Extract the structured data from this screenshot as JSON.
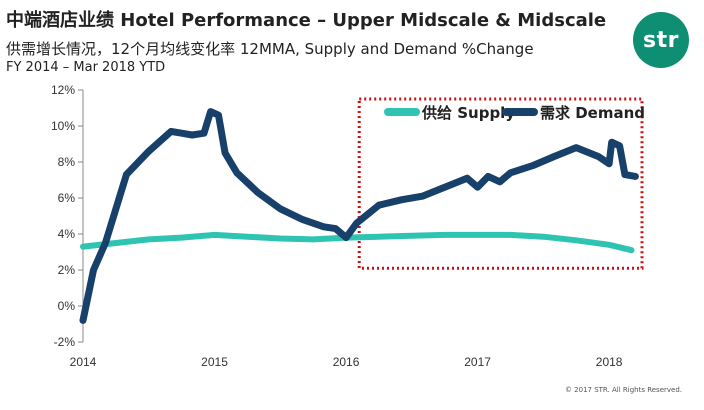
{
  "header": {
    "title": "中端酒店业绩 Hotel Performance – Upper Midscale & Midscale",
    "subtitle": "供需增长情况，12个月均线变化率 12MMA, Supply and Demand %Change",
    "period": "FY 2014 –  Mar 2018 YTD"
  },
  "logo": {
    "text": "str",
    "color": "#0e8f73"
  },
  "footer": {
    "copyright": "© 2017 STR. All Rights Reserved."
  },
  "chart_data": {
    "type": "line",
    "xlabel": "",
    "ylabel": "",
    "ylim": [
      -2,
      12
    ],
    "xlim": [
      2014,
      2018.25
    ],
    "y_ticks": [
      "-2%",
      "0%",
      "2%",
      "4%",
      "6%",
      "8%",
      "10%",
      "12%"
    ],
    "y_tick_values": [
      -2,
      0,
      2,
      4,
      6,
      8,
      10,
      12
    ],
    "x_ticks": [
      "2014",
      "2015",
      "2016",
      "2017",
      "2018"
    ],
    "x_tick_values": [
      2014,
      2015,
      2016,
      2017,
      2018
    ],
    "grid": false,
    "legend_position": "top-right",
    "highlight_box": {
      "x_range": [
        2016.1,
        2018.25
      ],
      "y_range": [
        2.1,
        11.5
      ],
      "color": "#cc1111",
      "style": "dotted"
    },
    "series": [
      {
        "name": "供给 Supply",
        "color": "#2ec4b1",
        "points": [
          [
            2014.0,
            3.3
          ],
          [
            2014.25,
            3.5
          ],
          [
            2014.5,
            3.7
          ],
          [
            2014.75,
            3.8
          ],
          [
            2015.0,
            3.95
          ],
          [
            2015.25,
            3.85
          ],
          [
            2015.5,
            3.75
          ],
          [
            2015.75,
            3.7
          ],
          [
            2016.0,
            3.8
          ],
          [
            2016.25,
            3.85
          ],
          [
            2016.5,
            3.9
          ],
          [
            2016.75,
            3.95
          ],
          [
            2017.0,
            3.95
          ],
          [
            2017.25,
            3.95
          ],
          [
            2017.5,
            3.85
          ],
          [
            2017.75,
            3.65
          ],
          [
            2018.0,
            3.4
          ],
          [
            2018.17,
            3.1
          ]
        ]
      },
      {
        "name": "需求 Demand",
        "color": "#17406b",
        "points": [
          [
            2014.0,
            -0.8
          ],
          [
            2014.08,
            2.0
          ],
          [
            2014.17,
            3.5
          ],
          [
            2014.33,
            7.3
          ],
          [
            2014.5,
            8.6
          ],
          [
            2014.67,
            9.7
          ],
          [
            2014.75,
            9.6
          ],
          [
            2014.83,
            9.5
          ],
          [
            2014.92,
            9.6
          ],
          [
            2014.97,
            10.8
          ],
          [
            2015.03,
            10.6
          ],
          [
            2015.08,
            8.5
          ],
          [
            2015.17,
            7.4
          ],
          [
            2015.33,
            6.3
          ],
          [
            2015.5,
            5.4
          ],
          [
            2015.67,
            4.8
          ],
          [
            2015.83,
            4.4
          ],
          [
            2015.92,
            4.3
          ],
          [
            2016.0,
            3.8
          ],
          [
            2016.08,
            4.6
          ],
          [
            2016.25,
            5.6
          ],
          [
            2016.42,
            5.9
          ],
          [
            2016.58,
            6.1
          ],
          [
            2016.75,
            6.6
          ],
          [
            2016.92,
            7.1
          ],
          [
            2017.0,
            6.6
          ],
          [
            2017.08,
            7.2
          ],
          [
            2017.17,
            6.9
          ],
          [
            2017.25,
            7.4
          ],
          [
            2017.42,
            7.8
          ],
          [
            2017.58,
            8.3
          ],
          [
            2017.75,
            8.8
          ],
          [
            2017.92,
            8.3
          ],
          [
            2018.0,
            7.9
          ],
          [
            2018.02,
            9.1
          ],
          [
            2018.08,
            8.9
          ],
          [
            2018.12,
            7.3
          ],
          [
            2018.2,
            7.2
          ]
        ]
      }
    ]
  }
}
